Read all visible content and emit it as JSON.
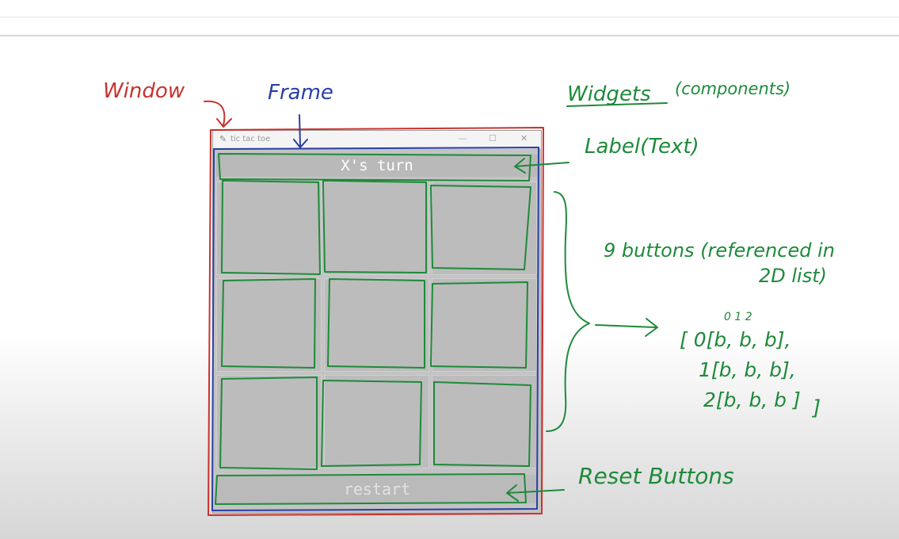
{
  "window_chrome": {
    "title": "tic tac toe",
    "minimize_glyph": "—",
    "maximize_glyph": "☐",
    "close_glyph": "✕",
    "app_icon": "feather-icon"
  },
  "game": {
    "turn_label": "X's turn",
    "restart_label": "restart"
  },
  "annotations": {
    "window": "Window",
    "frame": "Frame",
    "widgets": "Widgets",
    "widgets_sub": "(components)",
    "label_text": "Label(Text)",
    "buttons_line1": "9 buttons (referenced in",
    "buttons_line2": "2D list)",
    "list_index_header": "0  1  2",
    "list_row0": "[ 0[b, b, b],",
    "list_row1": "1[b, b, b],",
    "list_row2": "2[b, b, b ]",
    "list_close": "]",
    "reset_buttons": "Reset Buttons"
  },
  "colors": {
    "window_annotation": "#c8322e",
    "frame_annotation": "#2a3fa3",
    "widget_annotation": "#1e8a3a"
  }
}
